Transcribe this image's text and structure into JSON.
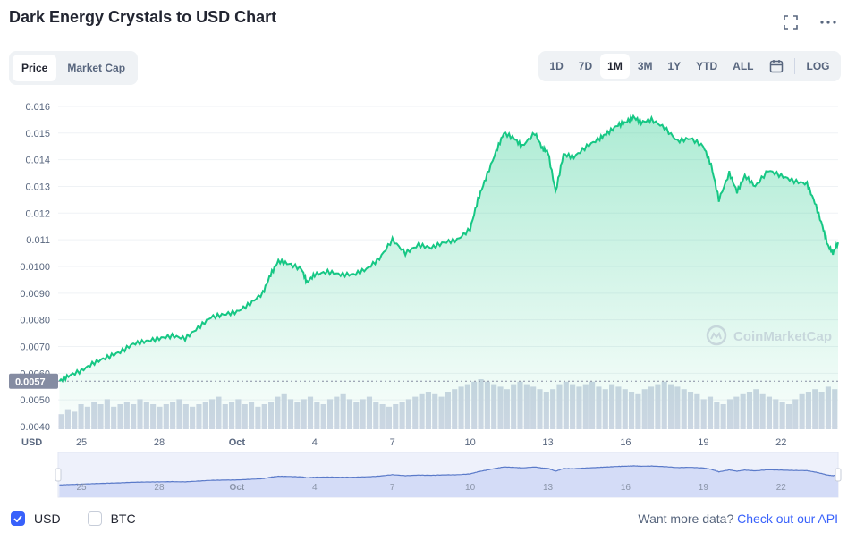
{
  "header": {
    "title": "Dark Energy Crystals to USD Chart"
  },
  "view_toggle": [
    {
      "label": "Price",
      "active": true
    },
    {
      "label": "Market Cap",
      "active": false
    }
  ],
  "ranges": [
    {
      "label": "1D",
      "active": false
    },
    {
      "label": "7D",
      "active": false
    },
    {
      "label": "1M",
      "active": true
    },
    {
      "label": "3M",
      "active": false
    },
    {
      "label": "1Y",
      "active": false
    },
    {
      "label": "YTD",
      "active": false
    },
    {
      "label": "ALL",
      "active": false
    }
  ],
  "log_label": "LOG",
  "footer": {
    "usd_label": "USD",
    "usd_checked": true,
    "btc_label": "BTC",
    "btc_checked": false,
    "more_text": "Want more data?",
    "api_link": "Check out our API"
  },
  "watermark": "CoinMarketCap",
  "colors": {
    "line": "#16c784",
    "accent": "#3861fb",
    "volume": "#cfd6e4",
    "current_tag": "#858ca2"
  },
  "chart_data": {
    "type": "area",
    "currency_label": "USD",
    "current_price_label": "0.0057",
    "current_price": 0.0057,
    "y_ticks": [
      "0.016",
      "0.015",
      "0.014",
      "0.013",
      "0.012",
      "0.011",
      "0.0100",
      "0.0090",
      "0.0080",
      "0.0070",
      "0.0060",
      "0.0050",
      "0.0040"
    ],
    "y_tick_values": [
      0.016,
      0.015,
      0.014,
      0.013,
      0.012,
      0.011,
      0.01,
      0.009,
      0.008,
      0.007,
      0.006,
      0.005,
      0.004
    ],
    "ylim": [
      0.0039,
      0.0163
    ],
    "x_ticks": [
      {
        "label": "25",
        "day": 0
      },
      {
        "label": "28",
        "day": 3
      },
      {
        "label": "Oct",
        "day": 6
      },
      {
        "label": "4",
        "day": 9
      },
      {
        "label": "7",
        "day": 12
      },
      {
        "label": "10",
        "day": 15
      },
      {
        "label": "13",
        "day": 18
      },
      {
        "label": "16",
        "day": 21
      },
      {
        "label": "19",
        "day": 24
      },
      {
        "label": "22",
        "day": 27
      }
    ],
    "xlim": [
      -0.9,
      29.2
    ],
    "series": [
      {
        "points": [
          [
            -0.85,
            0.0057
          ],
          [
            -0.5,
            0.0059
          ],
          [
            0,
            0.0061
          ],
          [
            0.5,
            0.0064
          ],
          [
            1,
            0.0066
          ],
          [
            1.5,
            0.0068
          ],
          [
            2,
            0.0071
          ],
          [
            2.5,
            0.0072
          ],
          [
            3,
            0.0073
          ],
          [
            3.5,
            0.0074
          ],
          [
            4,
            0.0073
          ],
          [
            4.5,
            0.0077
          ],
          [
            5,
            0.0081
          ],
          [
            5.5,
            0.0082
          ],
          [
            6,
            0.0083
          ],
          [
            6.5,
            0.0086
          ],
          [
            7,
            0.009
          ],
          [
            7.3,
            0.0097
          ],
          [
            7.6,
            0.0102
          ],
          [
            8,
            0.0101
          ],
          [
            8.5,
            0.0099
          ],
          [
            8.7,
            0.0094
          ],
          [
            9,
            0.0097
          ],
          [
            9.5,
            0.0098
          ],
          [
            10,
            0.0097
          ],
          [
            10.5,
            0.0097
          ],
          [
            11,
            0.0099
          ],
          [
            11.5,
            0.0103
          ],
          [
            12,
            0.011
          ],
          [
            12.5,
            0.0105
          ],
          [
            13,
            0.0108
          ],
          [
            13.5,
            0.0107
          ],
          [
            14,
            0.0109
          ],
          [
            14.5,
            0.011
          ],
          [
            15,
            0.0114
          ],
          [
            15.3,
            0.0125
          ],
          [
            15.6,
            0.0133
          ],
          [
            16,
            0.0143
          ],
          [
            16.3,
            0.015
          ],
          [
            16.7,
            0.0148
          ],
          [
            17,
            0.0145
          ],
          [
            17.5,
            0.015
          ],
          [
            17.8,
            0.0144
          ],
          [
            18,
            0.0143
          ],
          [
            18.3,
            0.0128
          ],
          [
            18.6,
            0.0142
          ],
          [
            19,
            0.0141
          ],
          [
            19.5,
            0.0145
          ],
          [
            20,
            0.0148
          ],
          [
            20.3,
            0.015
          ],
          [
            20.7,
            0.0153
          ],
          [
            21,
            0.0154
          ],
          [
            21.3,
            0.0156
          ],
          [
            21.6,
            0.0154
          ],
          [
            22,
            0.0155
          ],
          [
            22.5,
            0.0152
          ],
          [
            23,
            0.0147
          ],
          [
            23.5,
            0.0148
          ],
          [
            24,
            0.0145
          ],
          [
            24.3,
            0.0138
          ],
          [
            24.6,
            0.0125
          ],
          [
            25,
            0.0135
          ],
          [
            25.3,
            0.0128
          ],
          [
            25.6,
            0.0134
          ],
          [
            26,
            0.013
          ],
          [
            26.5,
            0.0136
          ],
          [
            27,
            0.0134
          ],
          [
            27.5,
            0.0132
          ],
          [
            28,
            0.0131
          ],
          [
            28.3,
            0.0124
          ],
          [
            28.6,
            0.0115
          ],
          [
            28.8,
            0.0108
          ],
          [
            29,
            0.0105
          ],
          [
            29.2,
            0.0109
          ]
        ]
      }
    ],
    "volume_max_fraction_note": "volume bars in lower strip, relative heights",
    "volumes": [
      0.3,
      0.4,
      0.35,
      0.5,
      0.45,
      0.55,
      0.5,
      0.6,
      0.45,
      0.5,
      0.55,
      0.5,
      0.6,
      0.55,
      0.5,
      0.45,
      0.5,
      0.55,
      0.6,
      0.5,
      0.45,
      0.5,
      0.55,
      0.6,
      0.65,
      0.5,
      0.55,
      0.6,
      0.5,
      0.55,
      0.45,
      0.5,
      0.55,
      0.65,
      0.7,
      0.6,
      0.55,
      0.6,
      0.65,
      0.55,
      0.5,
      0.6,
      0.65,
      0.7,
      0.6,
      0.55,
      0.6,
      0.65,
      0.55,
      0.5,
      0.45,
      0.5,
      0.55,
      0.6,
      0.65,
      0.7,
      0.75,
      0.7,
      0.65,
      0.75,
      0.8,
      0.85,
      0.9,
      0.95,
      1.0,
      0.95,
      0.9,
      0.85,
      0.8,
      0.9,
      0.95,
      0.9,
      0.85,
      0.8,
      0.75,
      0.8,
      0.9,
      0.95,
      0.9,
      0.85,
      0.9,
      0.95,
      0.85,
      0.8,
      0.9,
      0.85,
      0.8,
      0.75,
      0.7,
      0.8,
      0.85,
      0.9,
      0.95,
      0.9,
      0.85,
      0.8,
      0.75,
      0.7,
      0.6,
      0.65,
      0.55,
      0.5,
      0.6,
      0.65,
      0.7,
      0.75,
      0.8,
      0.7,
      0.65,
      0.6,
      0.55,
      0.5,
      0.6,
      0.7,
      0.75,
      0.8,
      0.75,
      0.85,
      0.8
    ]
  }
}
